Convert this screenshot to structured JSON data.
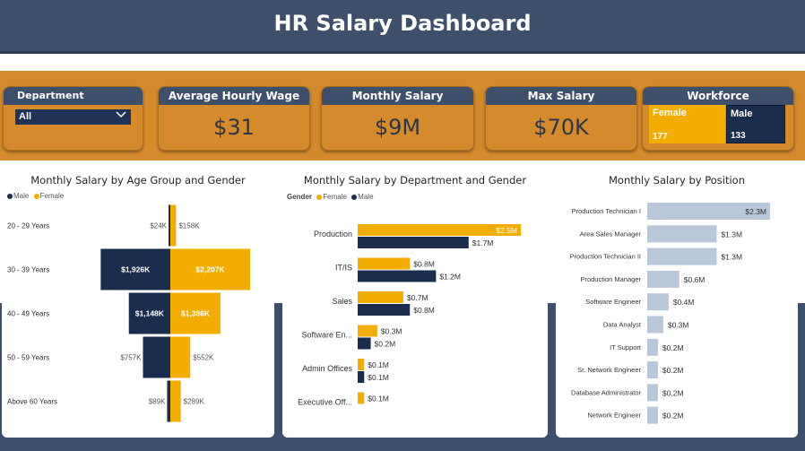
{
  "header": {
    "title": "HR Salary Dashboard"
  },
  "filters": {
    "department_label": "Department",
    "department_value": "All"
  },
  "kpis": [
    {
      "title": "Average Hourly Wage",
      "value": "$31"
    },
    {
      "title": "Monthly Salary",
      "value": "$9M"
    },
    {
      "title": "Max Salary",
      "value": "$70K"
    }
  ],
  "workforce": {
    "title": "Workforce",
    "female_label": "Female",
    "female_count": "177",
    "male_label": "Male",
    "male_count": "133"
  },
  "colors": {
    "male": "#1b2d4e",
    "female": "#f2ad00",
    "position_bar": "#b8c7d9",
    "header": "#3d4f6b",
    "band": "#d58b2c"
  },
  "chart_data": [
    {
      "type": "bar",
      "title": "Monthly Salary by Age Group and Gender",
      "legend": [
        "Male",
        "Female"
      ],
      "categories": [
        "20 - 29 Years",
        "30 - 39 Years",
        "40 - 49 Years",
        "50 - 59 Years",
        "Above 60 Years"
      ],
      "series": [
        {
          "name": "Male",
          "values": [
            24,
            1926,
            1148,
            757,
            89
          ],
          "labels": [
            "$24K",
            "$1,926K",
            "$1,148K",
            "$757K",
            "$89K"
          ]
        },
        {
          "name": "Female",
          "values": [
            158,
            2207,
            1386,
            552,
            289
          ],
          "labels": [
            "$158K",
            "$2,207K",
            "$1,386K",
            "$552K",
            "$289K"
          ]
        }
      ]
    },
    {
      "type": "bar",
      "title": "Monthly Salary by Department and Gender",
      "legend_title": "Gender",
      "legend": [
        "Female",
        "Male"
      ],
      "categories": [
        "Production",
        "IT/IS",
        "Sales",
        "Software En...",
        "Admin Offices",
        "Executive Off..."
      ],
      "series": [
        {
          "name": "Female",
          "values": [
            2.5,
            0.8,
            0.7,
            0.3,
            0.1,
            0.1
          ],
          "labels": [
            "$2.5M",
            "$0.8M",
            "$0.7M",
            "$0.3M",
            "$0.1M",
            "$0.1M"
          ]
        },
        {
          "name": "Male",
          "values": [
            1.7,
            1.2,
            0.8,
            0.2,
            0.1,
            null
          ],
          "labels": [
            "$1.7M",
            "$1.2M",
            "$0.8M",
            "$0.2M",
            "$0.1M",
            ""
          ]
        }
      ]
    },
    {
      "type": "bar",
      "title": "Monthly Salary by Position",
      "categories": [
        "Production Technician I",
        "Area Sales Manager",
        "Production Technician II",
        "Production Manager",
        "Software Engineer",
        "Data Analyst",
        "IT Support",
        "Sr. Network Engineer",
        "Database Administrator",
        "Network Engineer"
      ],
      "values": [
        2.3,
        1.3,
        1.3,
        0.6,
        0.4,
        0.3,
        0.2,
        0.2,
        0.2,
        0.2
      ],
      "labels": [
        "$2.3M",
        "$1.3M",
        "$1.3M",
        "$0.6M",
        "$0.4M",
        "$0.3M",
        "$0.2M",
        "$0.2M",
        "$0.2M",
        "$0.2M"
      ]
    }
  ]
}
